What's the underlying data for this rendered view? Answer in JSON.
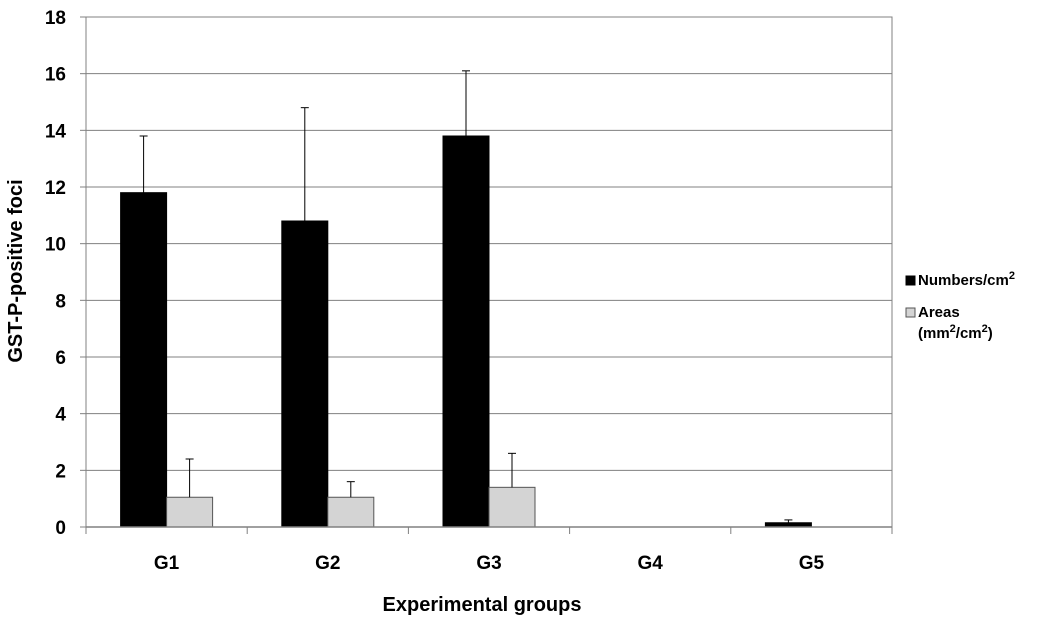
{
  "chart_data": {
    "type": "bar",
    "categories": [
      "G1",
      "G2",
      "G3",
      "G4",
      "G5"
    ],
    "series": [
      {
        "name": "Numbers/cm2",
        "color": "#000000",
        "values": [
          11.8,
          10.8,
          13.8,
          0,
          0.15
        ],
        "errors": [
          2.0,
          4.0,
          2.3,
          0,
          0.1
        ]
      },
      {
        "name": "Areas (mm2/cm2)",
        "color": "#d4d4d4",
        "values": [
          1.05,
          1.05,
          1.4,
          0,
          0
        ],
        "errors": [
          1.35,
          0.55,
          1.2,
          0,
          0
        ]
      }
    ],
    "xlabel": "Experimental groups",
    "ylabel": "GST-P-positive foci",
    "ylim": [
      0,
      18
    ],
    "yticks": [
      "0",
      "2",
      "4",
      "6",
      "8",
      "10",
      "12",
      "14",
      "16",
      "18"
    ],
    "grid": true,
    "legend_position": "right",
    "legend": {
      "numbers_main": "Numbers/cm",
      "numbers_sup": "2",
      "areas_line1": "Areas",
      "areas_line2_a": "(mm",
      "areas_line2_sup1": "2",
      "areas_line2_b": "/cm",
      "areas_line2_sup2": "2",
      "areas_line2_c": ")"
    }
  }
}
